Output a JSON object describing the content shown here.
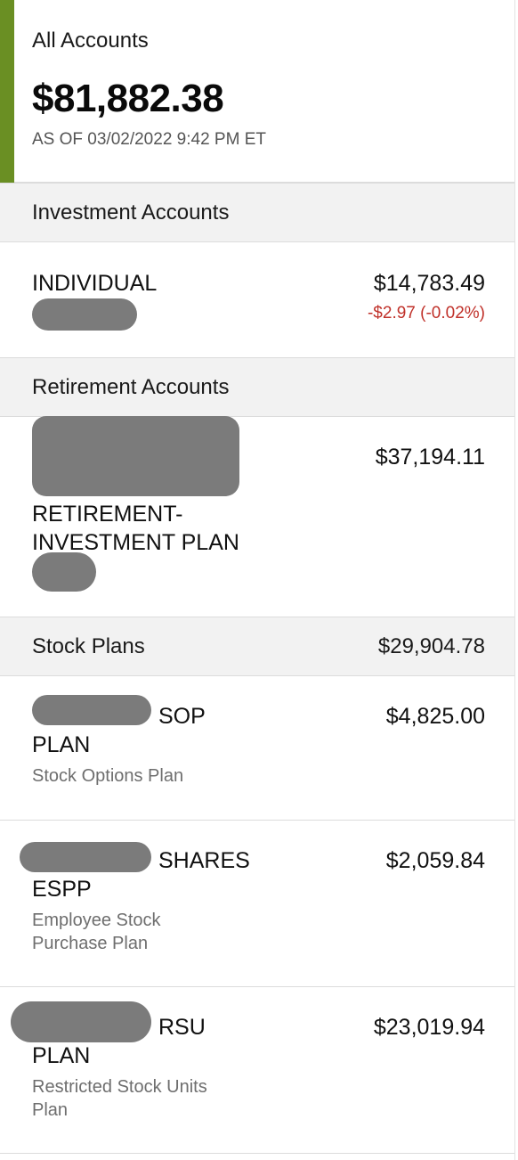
{
  "summary": {
    "title": "All Accounts",
    "total": "$81,882.38",
    "as_of": "AS OF 03/02/2022 9:42 PM ET",
    "accent_color": "#6a8f23"
  },
  "investment": {
    "header": "Investment Accounts",
    "account": {
      "name": "INDIVIDUAL",
      "balance": "$14,783.49",
      "change": "-$2.97 (-0.02%)",
      "change_color": "#c0312a"
    }
  },
  "retirement": {
    "header": "Retirement Accounts",
    "account": {
      "name_line1": "RETIREMENT-",
      "name_line2": "INVESTMENT PLAN",
      "balance": "$37,194.11"
    }
  },
  "stock_plans": {
    "header": "Stock Plans",
    "total": "$29,904.78",
    "accounts": [
      {
        "name_line1": "SOP",
        "name_line2": "PLAN",
        "subtitle_line1": "Stock Options Plan",
        "subtitle_line2": "",
        "balance": "$4,825.00"
      },
      {
        "name_line1": "SHARES",
        "name_line2": "ESPP",
        "subtitle_line1": "Employee Stock",
        "subtitle_line2": "Purchase Plan",
        "balance": "$2,059.84"
      },
      {
        "name_line1": "RSU",
        "name_line2": "PLAN",
        "subtitle_line1": "Restricted Stock Units",
        "subtitle_line2": "Plan",
        "balance": "$23,019.94"
      }
    ]
  }
}
